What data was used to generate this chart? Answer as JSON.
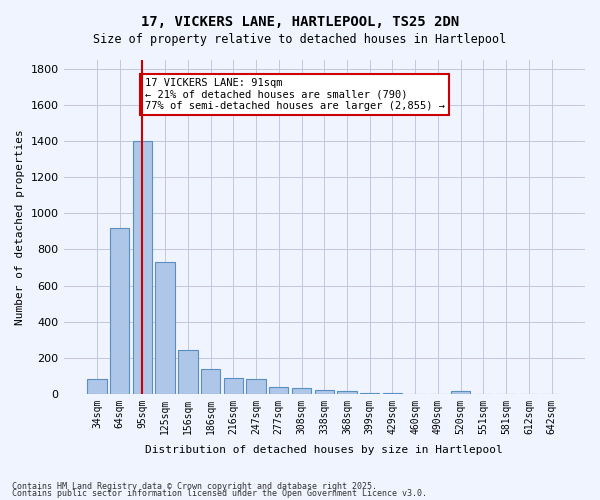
{
  "title_line1": "17, VICKERS LANE, HARTLEPOOL, TS25 2DN",
  "title_line2": "Size of property relative to detached houses in Hartlepool",
  "xlabel": "Distribution of detached houses by size in Hartlepool",
  "ylabel": "Number of detached properties",
  "bar_labels": [
    "34sqm",
    "64sqm",
    "95sqm",
    "125sqm",
    "156sqm",
    "186sqm",
    "216sqm",
    "247sqm",
    "277sqm",
    "308sqm",
    "338sqm",
    "368sqm",
    "399sqm",
    "429sqm",
    "460sqm",
    "490sqm",
    "520sqm",
    "551sqm",
    "581sqm",
    "612sqm",
    "642sqm"
  ],
  "bar_values": [
    80,
    920,
    1400,
    730,
    245,
    140,
    85,
    80,
    40,
    30,
    20,
    15,
    5,
    5,
    0,
    0,
    15,
    0,
    0,
    0,
    0
  ],
  "bar_color": "#aec6e8",
  "bar_edge_color": "#5a8fc2",
  "background_color": "#f0f4ff",
  "grid_color": "#c0c8e0",
  "vline_x": 2,
  "vline_color": "#cc0000",
  "annotation_text": "17 VICKERS LANE: 91sqm\n← 21% of detached houses are smaller (790)\n77% of semi-detached houses are larger (2,855) →",
  "annotation_box_color": "#ffffff",
  "annotation_box_edgecolor": "#cc0000",
  "ylim": [
    0,
    1850
  ],
  "yticks": [
    0,
    200,
    400,
    600,
    800,
    1000,
    1200,
    1400,
    1600,
    1800
  ],
  "footer_line1": "Contains HM Land Registry data © Crown copyright and database right 2025.",
  "footer_line2": "Contains public sector information licensed under the Open Government Licence v3.0."
}
